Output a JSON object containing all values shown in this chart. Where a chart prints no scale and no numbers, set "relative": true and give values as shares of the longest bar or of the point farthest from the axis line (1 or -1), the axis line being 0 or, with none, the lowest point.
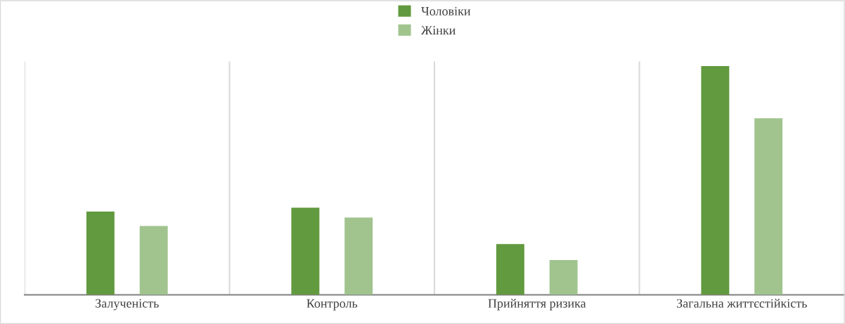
{
  "chart_data": {
    "type": "bar",
    "relative": true,
    "categories": [
      "Залученість",
      "Контроль",
      "Прийняття ризика",
      "Загальна життєстійкість"
    ],
    "series": [
      {
        "name": "Чоловіки",
        "color": "#629a3f",
        "values": [
          0.364,
          0.381,
          0.222,
          1
        ]
      },
      {
        "name": "Жінки",
        "color": "#a1c48f",
        "values": [
          0.301,
          0.338,
          0.152,
          0.772
        ]
      }
    ],
    "grid": "x",
    "legend": "top"
  }
}
